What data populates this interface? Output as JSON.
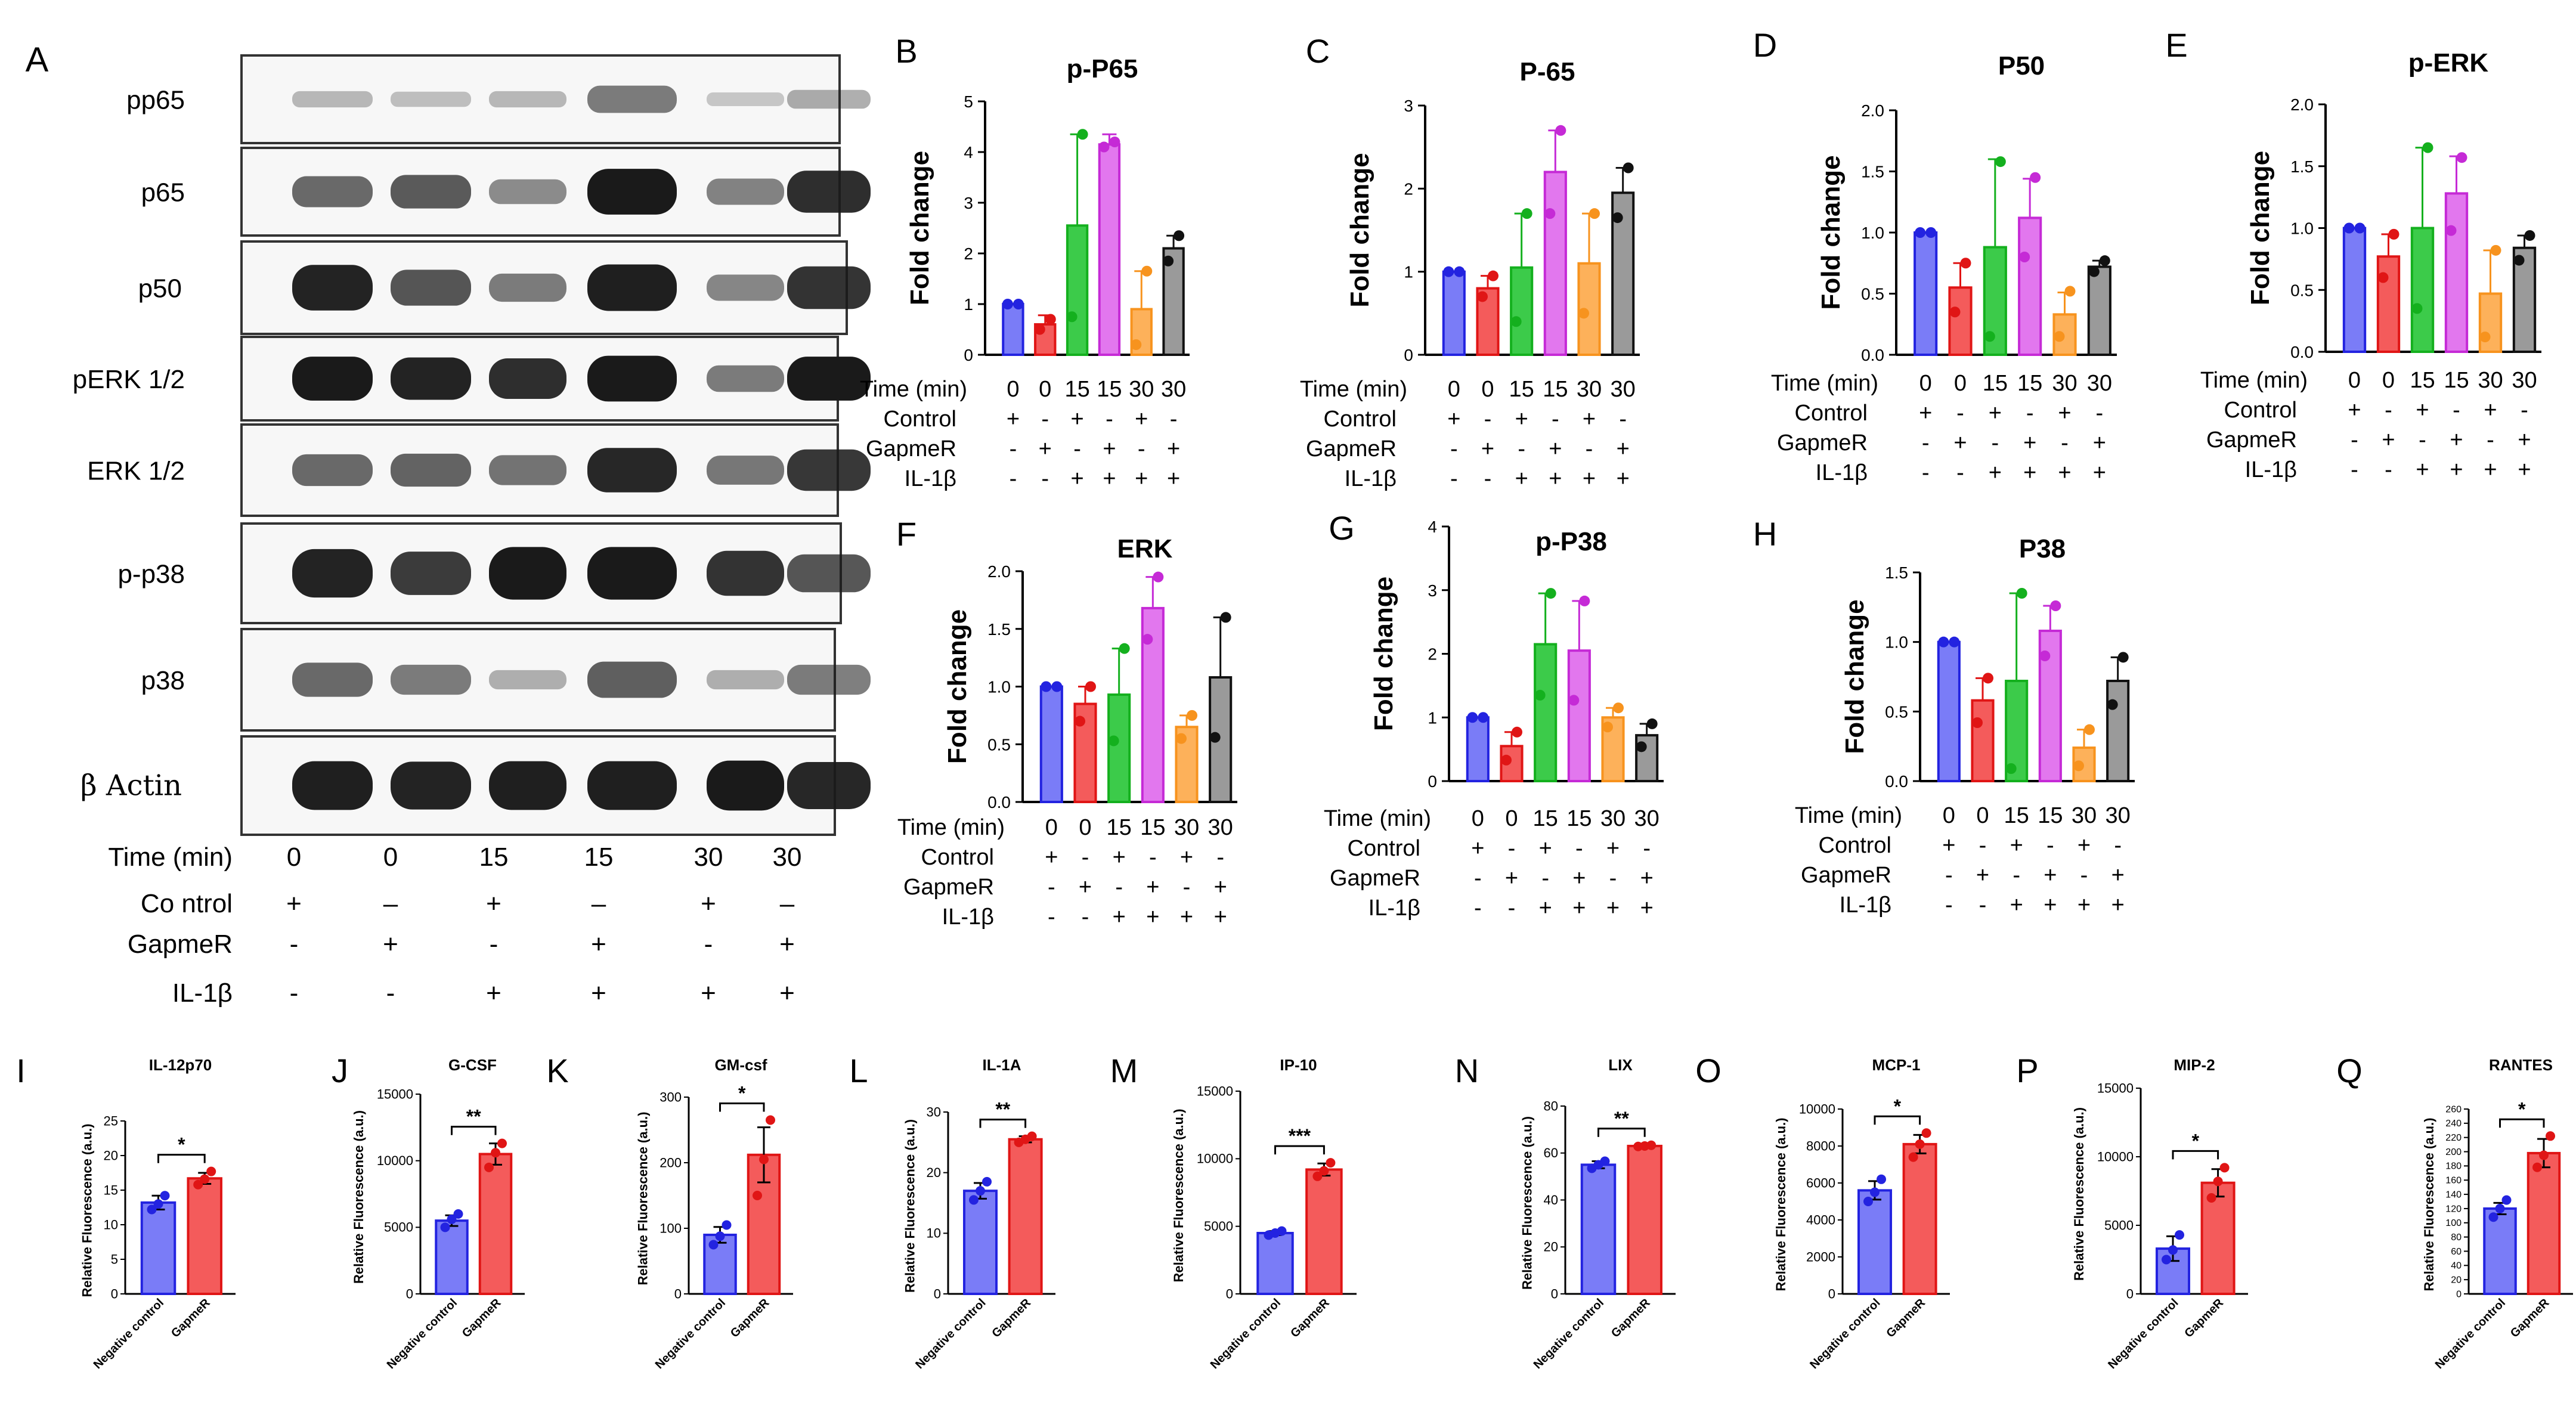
{
  "figure": {
    "panel_letters": [
      "A",
      "B",
      "C",
      "D",
      "E",
      "F",
      "G",
      "H",
      "I",
      "J",
      "K",
      "L",
      "M",
      "N",
      "O",
      "P",
      "Q"
    ]
  },
  "blot": {
    "letter": "A",
    "rows": [
      "pp65",
      "p65",
      "p50",
      "pERK 1/2",
      "ERK 1/2",
      "p-p38",
      "p38",
      "β Actin"
    ],
    "condition_rows": [
      {
        "label": "Time (min)",
        "values": [
          "0",
          "0",
          "15",
          "15",
          "30",
          "30"
        ]
      },
      {
        "label": "Co ntrol",
        "values": [
          "+",
          "–",
          "+",
          "–",
          "+",
          "–"
        ]
      },
      {
        "label": "GapmeR",
        "values": [
          "-",
          "+",
          "-",
          "+",
          "-",
          "+"
        ]
      },
      {
        "label": "IL-1β",
        "values": [
          "-",
          "-",
          "+",
          "+",
          "+",
          "+"
        ]
      }
    ],
    "band_intensity": [
      [
        0.15,
        0.12,
        0.15,
        0.45,
        0.08,
        0.22
      ],
      [
        0.55,
        0.62,
        0.38,
        0.95,
        0.42,
        0.85
      ],
      [
        0.9,
        0.65,
        0.45,
        0.92,
        0.4,
        0.82
      ],
      [
        0.95,
        0.9,
        0.85,
        1.0,
        0.45,
        0.95
      ],
      [
        0.55,
        0.58,
        0.5,
        0.88,
        0.48,
        0.8
      ],
      [
        0.9,
        0.78,
        1.0,
        1.0,
        0.82,
        0.65
      ],
      [
        0.55,
        0.45,
        0.2,
        0.6,
        0.2,
        0.45
      ],
      [
        0.92,
        0.9,
        0.92,
        0.92,
        0.95,
        0.88
      ]
    ],
    "colors": {
      "band": "#1a1a1a",
      "border": "#333333"
    }
  },
  "chart_data": [
    {
      "type": "bar",
      "letter": "B",
      "title": "p-P65",
      "ylabel": "Fold change",
      "ylim": [
        0,
        5
      ],
      "yticks": [
        "0",
        "1",
        "2",
        "3",
        "4",
        "5"
      ],
      "values": [
        1.0,
        0.6,
        2.55,
        4.15,
        0.9,
        2.1
      ],
      "errors": [
        0.0,
        0.18,
        1.8,
        0.2,
        0.75,
        0.25
      ],
      "points": [
        [
          1.0,
          1.0
        ],
        [
          0.5,
          0.7
        ],
        [
          0.75,
          4.35
        ],
        [
          4.1,
          4.2
        ],
        [
          0.2,
          1.65
        ],
        [
          1.85,
          2.35
        ]
      ]
    },
    {
      "type": "bar",
      "letter": "C",
      "title": "P-65",
      "ylabel": "Fold change",
      "ylim": [
        0,
        3
      ],
      "yticks": [
        "0",
        "1",
        "2",
        "3"
      ],
      "values": [
        1.0,
        0.8,
        1.05,
        2.2,
        1.1,
        1.95
      ],
      "errors": [
        0.0,
        0.15,
        0.65,
        0.5,
        0.6,
        0.3
      ],
      "points": [
        [
          1.0,
          1.0
        ],
        [
          0.7,
          0.95
        ],
        [
          0.4,
          1.7
        ],
        [
          1.7,
          2.7
        ],
        [
          0.5,
          1.7
        ],
        [
          1.65,
          2.25
        ]
      ]
    },
    {
      "type": "bar",
      "letter": "D",
      "title": "P50",
      "ylabel": "Fold change",
      "ylim": [
        0,
        2.0
      ],
      "yticks": [
        "0.0",
        "0.5",
        "1.0",
        "1.5",
        "2.0"
      ],
      "values": [
        1.0,
        0.55,
        0.88,
        1.12,
        0.33,
        0.72
      ],
      "errors": [
        0.0,
        0.2,
        0.72,
        0.32,
        0.18,
        0.05
      ],
      "points": [
        [
          1.0,
          1.0
        ],
        [
          0.35,
          0.75
        ],
        [
          0.15,
          1.58
        ],
        [
          0.8,
          1.45
        ],
        [
          0.15,
          0.52
        ],
        [
          0.68,
          0.77
        ]
      ]
    },
    {
      "type": "bar",
      "letter": "E",
      "title": "p-ERK",
      "ylabel": "Fold change",
      "ylim": [
        0,
        2.0
      ],
      "yticks": [
        "0.0",
        "0.5",
        "1.0",
        "1.5",
        "2.0"
      ],
      "values": [
        1.0,
        0.77,
        1.0,
        1.28,
        0.47,
        0.84
      ],
      "errors": [
        0.0,
        0.18,
        0.65,
        0.3,
        0.35,
        0.1
      ],
      "points": [
        [
          1.0,
          1.0
        ],
        [
          0.6,
          0.95
        ],
        [
          0.35,
          1.65
        ],
        [
          0.98,
          1.57
        ],
        [
          0.12,
          0.82
        ],
        [
          0.74,
          0.94
        ]
      ]
    },
    {
      "type": "bar",
      "letter": "F",
      "title": "ERK",
      "ylabel": "Fold change",
      "ylim": [
        0,
        2.0
      ],
      "yticks": [
        "0.0",
        "0.5",
        "1.0",
        "1.5",
        "2.0"
      ],
      "values": [
        1.0,
        0.85,
        0.93,
        1.68,
        0.65,
        1.08
      ],
      "errors": [
        0.0,
        0.15,
        0.4,
        0.27,
        0.1,
        0.52
      ],
      "points": [
        [
          1.0,
          1.0
        ],
        [
          0.7,
          1.0
        ],
        [
          0.53,
          1.33
        ],
        [
          1.41,
          1.95
        ],
        [
          0.55,
          0.75
        ],
        [
          0.56,
          1.6
        ]
      ]
    },
    {
      "type": "bar",
      "letter": "G",
      "title": "p-P38",
      "ylabel": "Fold change",
      "ylim": [
        0,
        4
      ],
      "yticks": [
        "0",
        "1",
        "2",
        "3",
        "4"
      ],
      "values": [
        1.0,
        0.55,
        2.15,
        2.05,
        1.0,
        0.72
      ],
      "errors": [
        0.0,
        0.22,
        0.8,
        0.78,
        0.15,
        0.18
      ],
      "points": [
        [
          1.0,
          1.0
        ],
        [
          0.33,
          0.77
        ],
        [
          1.35,
          2.95
        ],
        [
          1.27,
          2.83
        ],
        [
          0.85,
          1.15
        ],
        [
          0.54,
          0.9
        ]
      ]
    },
    {
      "type": "bar",
      "letter": "H",
      "title": "P38",
      "ylabel": "Fold change",
      "ylim": [
        0,
        1.5
      ],
      "yticks": [
        "0.0",
        "0.5",
        "1.0",
        "1.5"
      ],
      "values": [
        1.0,
        0.58,
        0.72,
        1.08,
        0.24,
        0.72
      ],
      "errors": [
        0.0,
        0.16,
        0.63,
        0.18,
        0.13,
        0.17
      ],
      "points": [
        [
          1.0,
          1.0
        ],
        [
          0.42,
          0.74
        ],
        [
          0.09,
          1.35
        ],
        [
          0.9,
          1.26
        ],
        [
          0.11,
          0.37
        ],
        [
          0.55,
          0.89
        ]
      ]
    },
    {
      "type": "bar",
      "letter": "I",
      "title": "IL-12p70",
      "ylabel": "Relative Fluorescence (a.u.)",
      "categories": [
        "Negative control",
        "GapmeR"
      ],
      "ylim": [
        0,
        25
      ],
      "yticks": [
        "0",
        "5",
        "10",
        "15",
        "20",
        "25"
      ],
      "values": [
        13.2,
        16.7
      ],
      "errors": [
        1.0,
        0.8
      ],
      "points": [
        [
          12.2,
          13.0,
          14.2
        ],
        [
          15.8,
          16.6,
          17.7
        ]
      ],
      "sig": "*"
    },
    {
      "type": "bar",
      "letter": "J",
      "title": "G-CSF",
      "ylabel": "Relative Fluorescence (a.u.)",
      "categories": [
        "Negative control",
        "GapmeR"
      ],
      "ylim": [
        0,
        15000
      ],
      "yticks": [
        "0",
        "5000",
        "10000",
        "15000"
      ],
      "values": [
        5500,
        10500
      ],
      "errors": [
        400,
        800
      ],
      "points": [
        [
          5000,
          5600,
          6000
        ],
        [
          9500,
          10600,
          11300
        ]
      ],
      "sig": "**"
    },
    {
      "type": "bar",
      "letter": "K",
      "title": "GM-csf",
      "ylabel": "Relative Fluorescence (a.u.)",
      "categories": [
        "Negative control",
        "GapmeR"
      ],
      "ylim": [
        0,
        300
      ],
      "yticks": [
        "0",
        "100",
        "200",
        "300"
      ],
      "values": [
        90,
        212
      ],
      "errors": [
        12,
        42
      ],
      "points": [
        [
          75,
          88,
          105
        ],
        [
          150,
          205,
          265
        ]
      ],
      "sig": "*"
    },
    {
      "type": "bar",
      "letter": "L",
      "title": "IL-1A",
      "ylabel": "Relative Fluorescence (a.u.)",
      "categories": [
        "Negative control",
        "GapmeR"
      ],
      "ylim": [
        0,
        30
      ],
      "yticks": [
        "0",
        "10",
        "20",
        "30"
      ],
      "values": [
        17,
        25.5
      ],
      "errors": [
        1.3,
        0.5
      ],
      "points": [
        [
          15.5,
          17.0,
          18.5
        ],
        [
          25.0,
          25.5,
          26.0
        ]
      ],
      "sig": "**"
    },
    {
      "type": "bar",
      "letter": "M",
      "title": "IP-10",
      "ylabel": "Relative Fluorescence (a.u.)",
      "categories": [
        "Negative control",
        "GapmeR"
      ],
      "ylim": [
        0,
        15000
      ],
      "yticks": [
        "0",
        "5000",
        "10000",
        "15000"
      ],
      "values": [
        4500,
        9200
      ],
      "errors": [
        150,
        450
      ],
      "points": [
        [
          4350,
          4500,
          4650
        ],
        [
          8700,
          9100,
          9700
        ]
      ],
      "sig": "***"
    },
    {
      "type": "bar",
      "letter": "N",
      "title": "LIX",
      "ylabel": "Relative Fluorescence (a.u.)",
      "categories": [
        "Negative control",
        "GapmeR"
      ],
      "ylim": [
        0,
        80
      ],
      "yticks": [
        "0",
        "20",
        "40",
        "60",
        "80"
      ],
      "values": [
        55,
        63
      ],
      "errors": [
        1.5,
        0.3
      ],
      "points": [
        [
          53.5,
          55.0,
          56.5
        ],
        [
          62.8,
          63.0,
          63.3
        ]
      ],
      "sig": "**"
    },
    {
      "type": "bar",
      "letter": "O",
      "title": "MCP-1",
      "ylabel": "Relative Fluorescence (a.u.)",
      "categories": [
        "Negative control",
        "GapmeR"
      ],
      "ylim": [
        0,
        10000
      ],
      "yticks": [
        "0",
        "2000",
        "4000",
        "6000",
        "8000",
        "10000"
      ],
      "values": [
        5600,
        8100
      ],
      "errors": [
        500,
        500
      ],
      "points": [
        [
          5000,
          5500,
          6200
        ],
        [
          7400,
          8100,
          8700
        ]
      ],
      "sig": "*"
    },
    {
      "type": "bar",
      "letter": "P",
      "title": "MIP-2",
      "ylabel": "Relative Fluorescence (a.u.)",
      "categories": [
        "Negative control",
        "GapmeR"
      ],
      "ylim": [
        0,
        15000
      ],
      "yticks": [
        "0",
        "5000",
        "10000",
        "15000"
      ],
      "values": [
        3300,
        8100
      ],
      "errors": [
        900,
        1000
      ],
      "points": [
        [
          2500,
          3200,
          4300
        ],
        [
          7000,
          8200,
          9200
        ]
      ],
      "sig": "*"
    },
    {
      "type": "bar",
      "letter": "Q",
      "title": "RANTES",
      "ylabel": "Relative Fluorescence (a.u.)",
      "categories": [
        "Negative control",
        "GapmeR"
      ],
      "ylim": [
        0,
        260
      ],
      "yticks": [
        "0",
        "20",
        "40",
        "60",
        "80",
        "100",
        "120",
        "140",
        "160",
        "180",
        "200",
        "220",
        "240",
        "260"
      ],
      "values": [
        120,
        198
      ],
      "errors": [
        8,
        20
      ],
      "points": [
        [
          108,
          120,
          132
        ],
        [
          178,
          195,
          222
        ]
      ],
      "sig": "*"
    }
  ],
  "time_conditions": {
    "rows": [
      {
        "label": "Time (min)",
        "values": [
          "0",
          "0",
          "15",
          "15",
          "30",
          "30"
        ]
      },
      {
        "label": "Control",
        "values": [
          "+",
          "-",
          "+",
          "-",
          "+",
          "-"
        ]
      },
      {
        "label": "GapmeR",
        "values": [
          "-",
          "+",
          "-",
          "+",
          "-",
          "+"
        ]
      },
      {
        "label": "IL-1β",
        "values": [
          "-",
          "-",
          "+",
          "+",
          "+",
          "+"
        ]
      }
    ]
  },
  "colors": {
    "time_series": [
      "#7a7cf7",
      "#f45b5b",
      "#3ccb4a",
      "#e277ee",
      "#fdb15a",
      "#9a9a9a"
    ],
    "time_points": [
      "#2323e0",
      "#e01515",
      "#14b01e",
      "#c52ad6",
      "#f7931e",
      "#111111"
    ],
    "pair_series": [
      "#7a7cf7",
      "#f45b5b"
    ],
    "pair_points": [
      "#2323e0",
      "#e01515"
    ],
    "axis": "#000000"
  }
}
